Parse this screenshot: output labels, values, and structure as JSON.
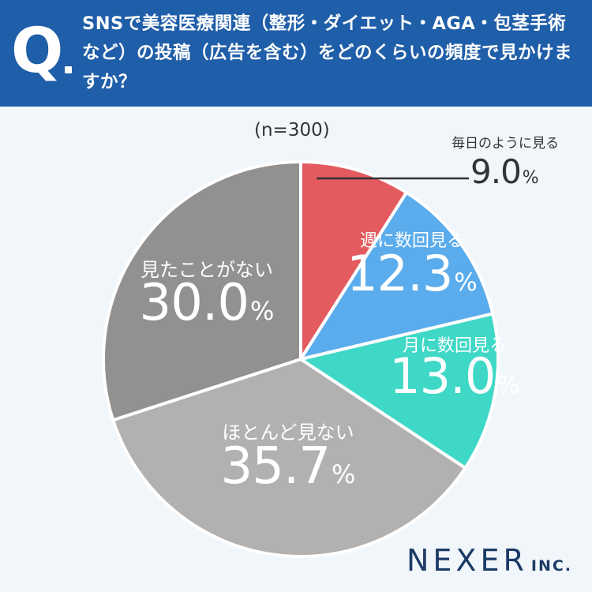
{
  "question": {
    "mark": "Q",
    "text": "SNSで美容医療関連（整形・ダイエット・AGA・包茎手術など）の投稿（広告を含む）をどのくらいの頻度で見かけますか？"
  },
  "sample_label": "(n=300)",
  "brand": {
    "name": "NEXER",
    "suffix": "INC."
  },
  "chart_data": {
    "type": "pie",
    "start_angle": "12 o'clock",
    "direction": "clockwise",
    "unit": "%",
    "slices": [
      {
        "label": "毎日のように見る",
        "value": 9.0,
        "display": "9.0",
        "color": "#e35b5f"
      },
      {
        "label": "週に数回見る",
        "value": 12.3,
        "display": "12.3",
        "color": "#5aacec"
      },
      {
        "label": "月に数回見る",
        "value": 13.0,
        "display": "13.0",
        "color": "#3fd8c6"
      },
      {
        "label": "ほとんど見ない",
        "value": 35.7,
        "display": "35.7",
        "color": "#b3b1b0"
      },
      {
        "label": "見たことがない",
        "value": 30.0,
        "display": "30.0",
        "color": "#939090"
      }
    ]
  }
}
